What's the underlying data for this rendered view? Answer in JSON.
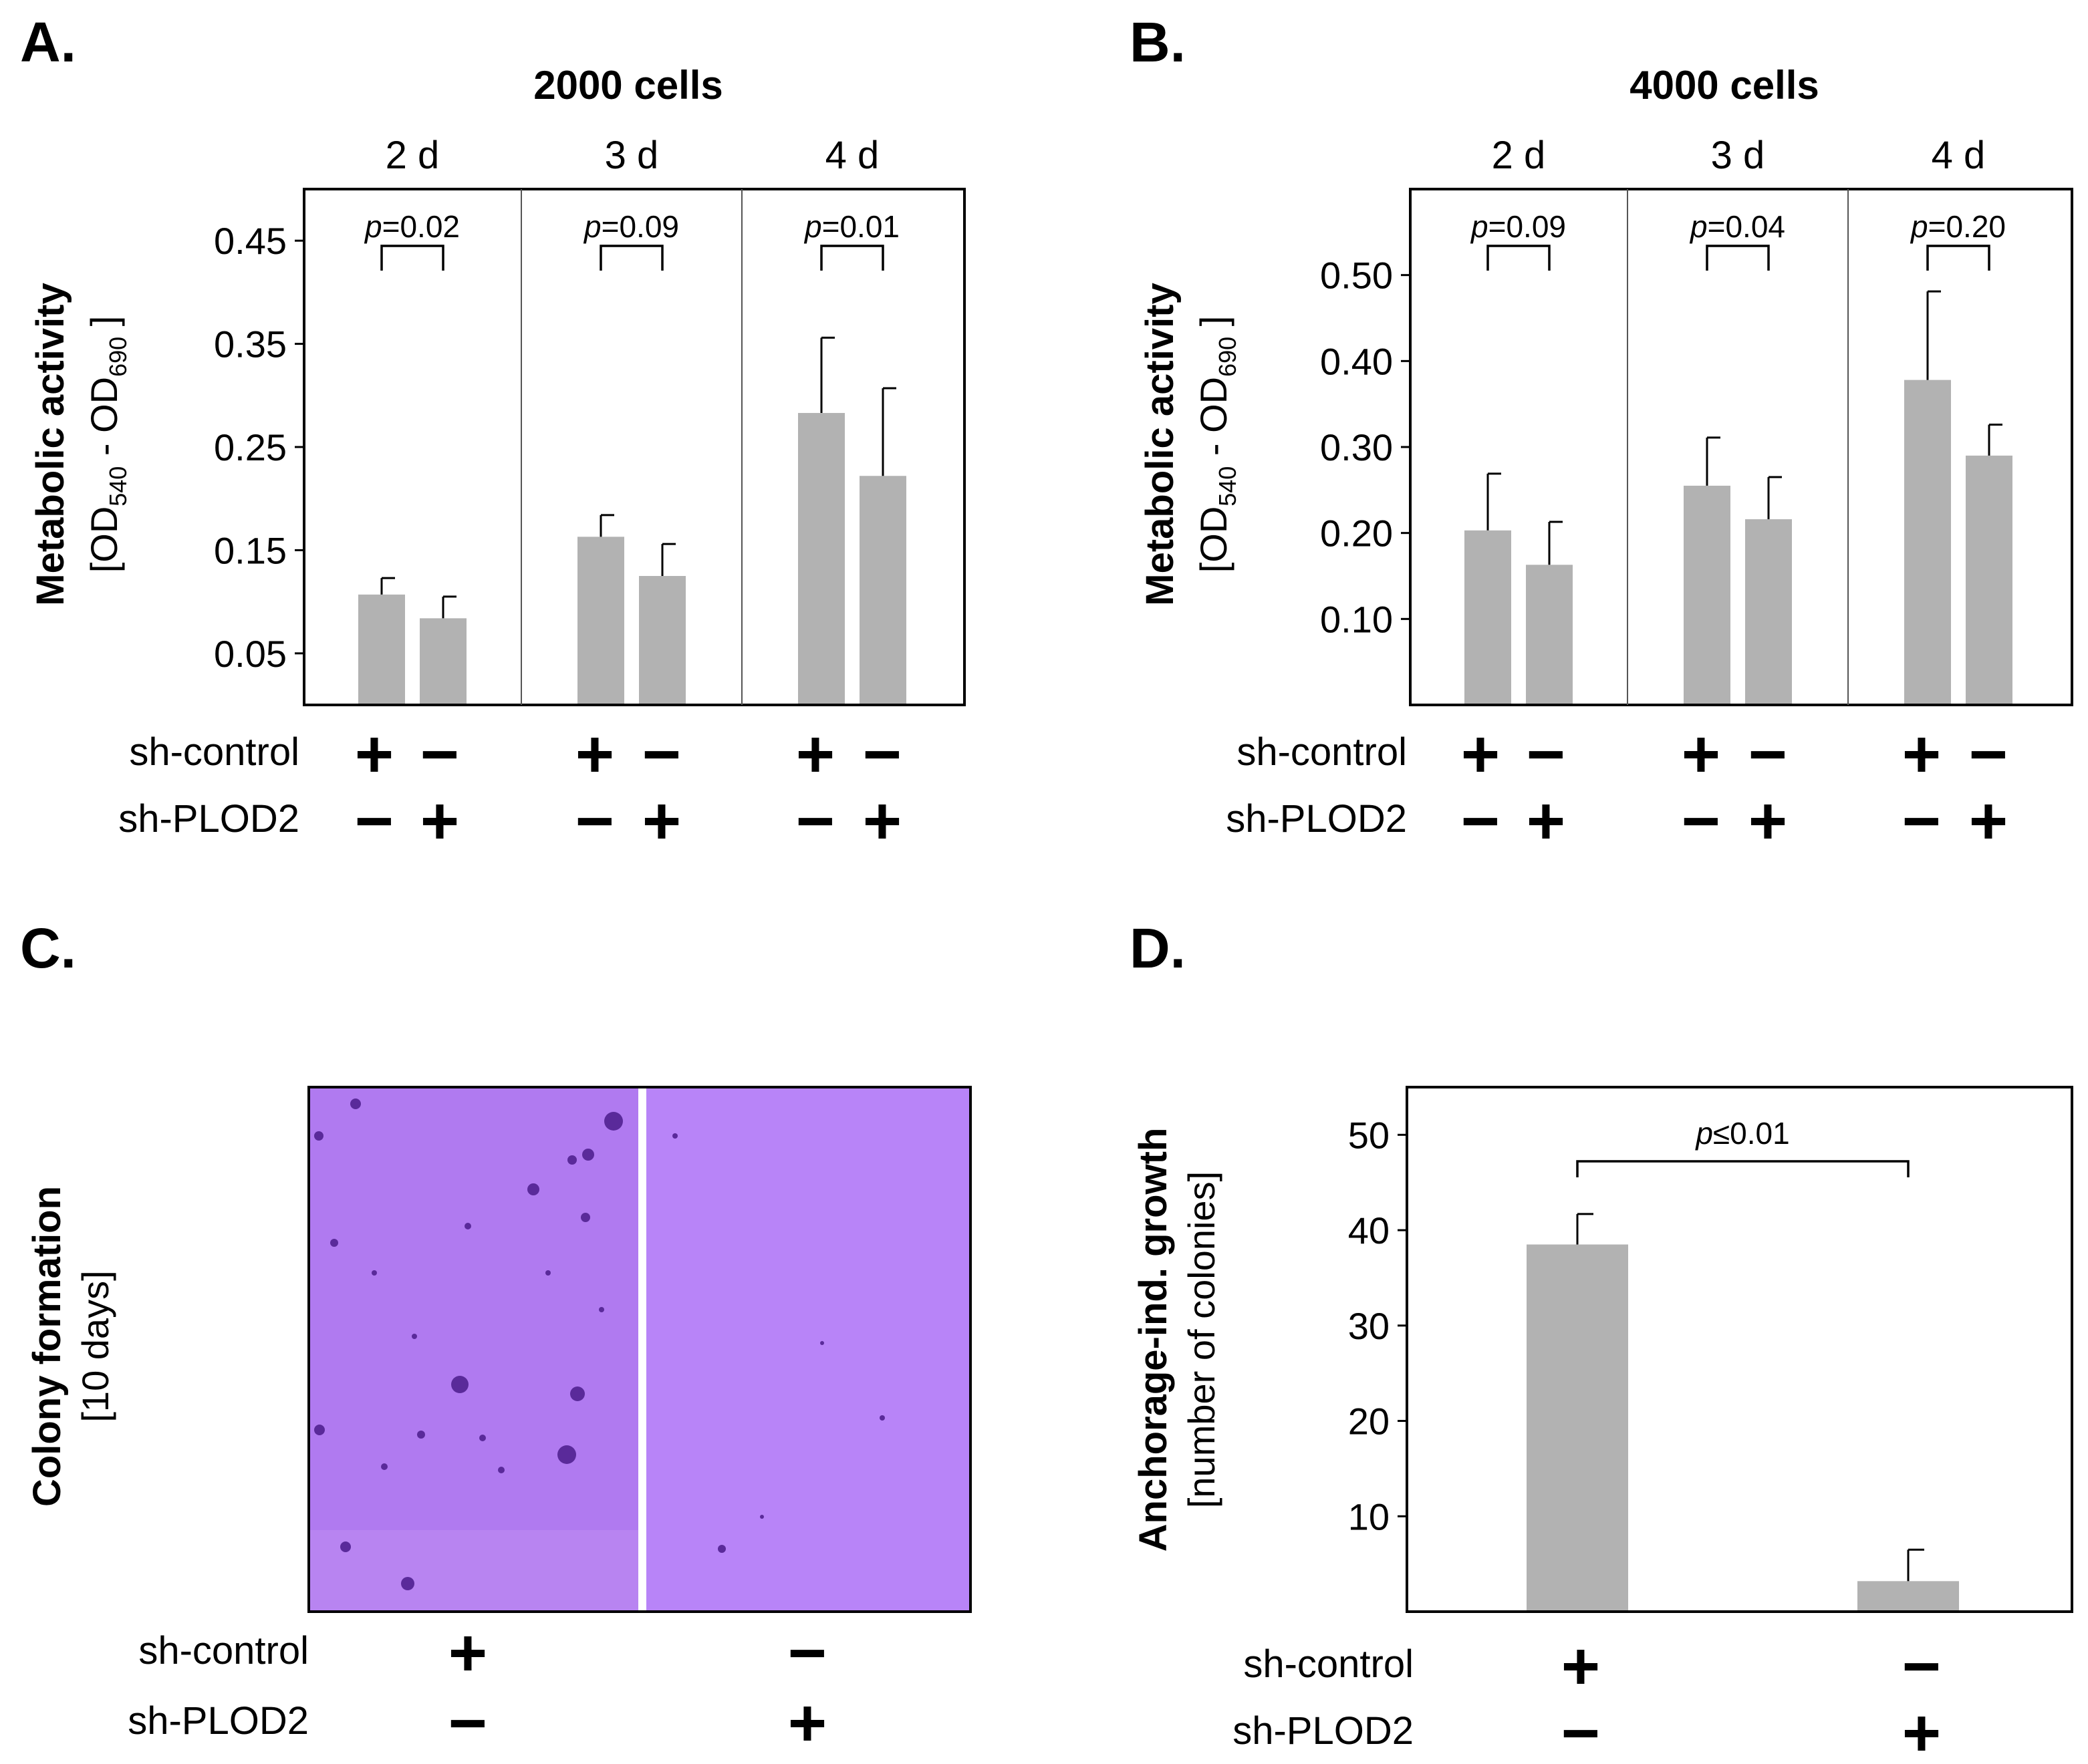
{
  "panels": {
    "A": {
      "letter": "A.",
      "title": "2000 cells",
      "ylabel_main": "Metabolic activity",
      "ylabel_sub": "[OD540 - OD690]",
      "row_labels": [
        "sh-control",
        "sh-PLOD2"
      ]
    },
    "B": {
      "letter": "B.",
      "title": "4000 cells",
      "ylabel_main": "Metabolic activity",
      "ylabel_sub": "[OD540 - OD690]",
      "row_labels": [
        "sh-control",
        "sh-PLOD2"
      ]
    },
    "C": {
      "letter": "C.",
      "ylabel_main": "Colony formation",
      "ylabel_sub": "[10 days]",
      "row_labels": [
        "sh-control",
        "sh-PLOD2"
      ],
      "image_description_color": "#b57cf5"
    },
    "D": {
      "letter": "D.",
      "ylabel_main": "Anchorage-ind. growth",
      "ylabel_sub": "[number of colonies]",
      "row_labels": [
        "sh-control",
        "sh-PLOD2"
      ]
    }
  },
  "colors": {
    "bar": "#b2b2b2",
    "frame": "#000000",
    "colony_bg": "#b57cf5",
    "colony_dot": "#5a2a9a"
  },
  "chart_data": [
    {
      "id": "A",
      "type": "bar",
      "title": "2000 cells",
      "ylabel": "Metabolic activity [OD540 - OD690]",
      "ylim": [
        0.0,
        0.5
      ],
      "yticks": [
        "0.05",
        "0.15",
        "0.25",
        "0.35",
        "0.45"
      ],
      "yticks_values": [
        0.05,
        0.15,
        0.25,
        0.35,
        0.45
      ],
      "categories": [
        "2 d",
        "3 d",
        "4 d"
      ],
      "groups": [
        {
          "label": "2 d",
          "values": [
            0.107,
            0.084
          ],
          "errors": [
            0.016,
            0.021
          ],
          "p_value": "p=0.02"
        },
        {
          "label": "3 d",
          "values": [
            0.163,
            0.125
          ],
          "errors": [
            0.021,
            0.031
          ],
          "p_value": "p=0.09"
        },
        {
          "label": "4 d",
          "values": [
            0.283,
            0.222
          ],
          "errors": [
            0.073,
            0.085
          ],
          "p_value": "p=0.01"
        }
      ],
      "conditions": {
        "sh-control": [
          "+",
          "−"
        ],
        "sh-PLOD2": [
          "−",
          "+"
        ]
      },
      "grid": false
    },
    {
      "id": "B",
      "type": "bar",
      "title": "4000 cells",
      "ylabel": "Metabolic activity [OD540 - OD690]",
      "ylim": [
        0.0,
        0.6
      ],
      "yticks": [
        "0.10",
        "0.20",
        "0.30",
        "0.40",
        "0.50"
      ],
      "yticks_values": [
        0.1,
        0.2,
        0.3,
        0.4,
        0.5
      ],
      "categories": [
        "2 d",
        "3 d",
        "4 d"
      ],
      "groups": [
        {
          "label": "2 d",
          "values": [
            0.203,
            0.163
          ],
          "errors": [
            0.066,
            0.05
          ],
          "p_value": "p=0.09"
        },
        {
          "label": "3 d",
          "values": [
            0.255,
            0.216
          ],
          "errors": [
            0.056,
            0.049
          ],
          "p_value": "p=0.04"
        },
        {
          "label": "4 d",
          "values": [
            0.378,
            0.29
          ],
          "errors": [
            0.103,
            0.036
          ],
          "p_value": "p=0.20"
        }
      ],
      "conditions": {
        "sh-control": [
          "+",
          "−"
        ],
        "sh-PLOD2": [
          "−",
          "+"
        ]
      },
      "grid": false
    },
    {
      "id": "D",
      "type": "bar",
      "ylabel": "Anchorage-ind. growth [number of colonies]",
      "ylim": [
        0,
        55
      ],
      "yticks": [
        "10",
        "20",
        "30",
        "40",
        "50"
      ],
      "yticks_values": [
        10,
        20,
        30,
        40,
        50
      ],
      "categories": [
        "sh-control +",
        "sh-PLOD2 +"
      ],
      "values": [
        38.5,
        3.2
      ],
      "errors": [
        3.2,
        3.3
      ],
      "p_value": "p≤0.01",
      "conditions": {
        "sh-control": [
          "+",
          "−"
        ],
        "sh-PLOD2": [
          "−",
          "+"
        ]
      },
      "grid": false
    }
  ]
}
